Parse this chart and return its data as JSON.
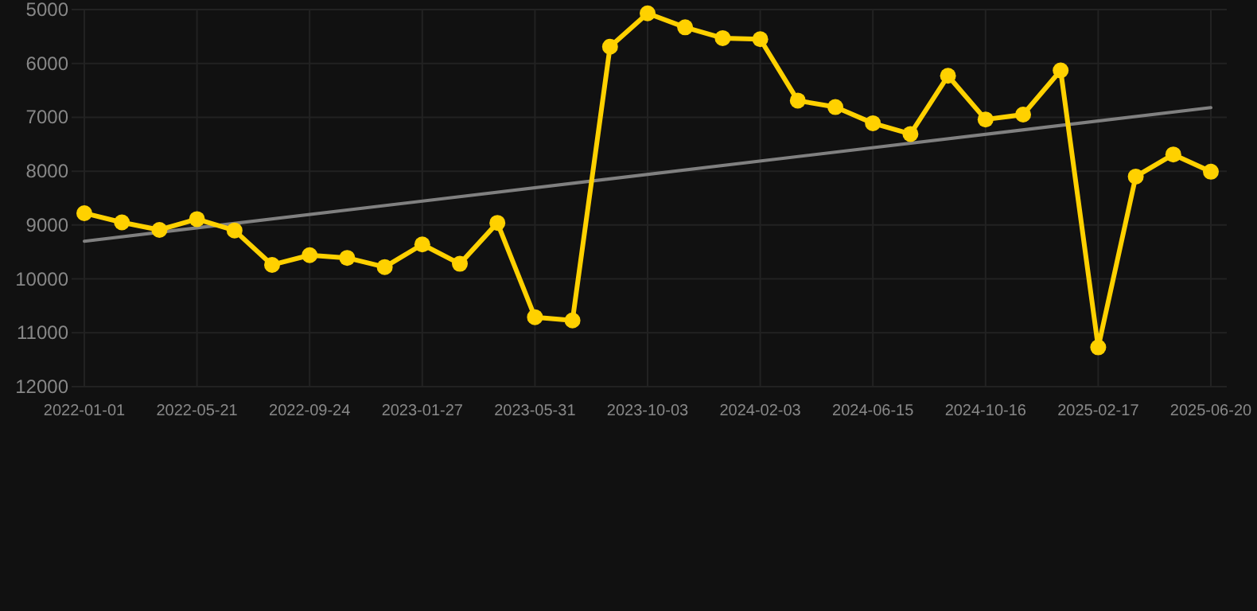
{
  "chart_data": {
    "type": "line",
    "categories": [
      "2022-01-01",
      null,
      null,
      "2022-05-21",
      null,
      null,
      "2022-09-24",
      null,
      null,
      "2023-01-27",
      null,
      null,
      "2023-05-31",
      null,
      null,
      "2023-10-03",
      null,
      null,
      "2024-02-03",
      null,
      null,
      "2024-06-15",
      null,
      null,
      "2024-10-16",
      null,
      null,
      "2025-02-17",
      null,
      null,
      "2025-06-20"
    ],
    "series": [
      {
        "color": "#ffd100",
        "marker": "circle",
        "values": [
          8780,
          8950,
          9090,
          8890,
          9100,
          9740,
          9560,
          9610,
          9780,
          9360,
          9720,
          8960,
          10710,
          10770,
          5690,
          5070,
          5330,
          5530,
          5550,
          6690,
          6810,
          7110,
          7310,
          6230,
          7040,
          6950,
          6130,
          11270,
          8100,
          7690,
          8010
        ]
      },
      {
        "type": "line",
        "color": "#808080",
        "marker": "none",
        "values": [
          9300,
          null,
          null,
          null,
          null,
          null,
          null,
          null,
          null,
          null,
          null,
          null,
          null,
          null,
          null,
          null,
          null,
          null,
          null,
          null,
          null,
          null,
          null,
          null,
          null,
          null,
          null,
          null,
          null,
          null,
          6820
        ]
      }
    ],
    "ylim": [
      12000,
      5000
    ],
    "yticks": [
      5000,
      6000,
      7000,
      8000,
      9000,
      10000,
      11000,
      12000
    ],
    "grid": true
  }
}
